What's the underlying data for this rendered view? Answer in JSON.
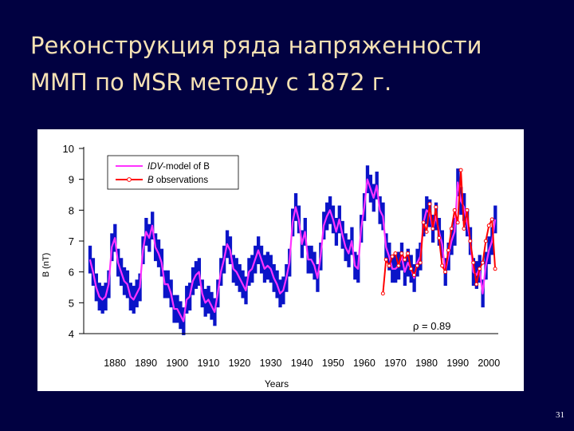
{
  "slide": {
    "title_line1": "Реконструкция ряда напряженности",
    "title_line2": "ММП по MSR методу с 1872 г.",
    "page_number": "31",
    "colors": {
      "background": "#010141",
      "title": "#f6e2b4",
      "panel": "#ffffff"
    }
  },
  "chart_data": {
    "type": "line",
    "title": "",
    "xlabel": "Years",
    "ylabel": "B (nT)",
    "xlim": [
      1870,
      2003
    ],
    "ylim": [
      4,
      10
    ],
    "x_ticks": [
      1880,
      1890,
      1900,
      1910,
      1920,
      1930,
      1940,
      1950,
      1960,
      1970,
      1980,
      1990,
      2000
    ],
    "y_ticks": [
      4,
      5,
      6,
      7,
      8,
      9,
      10
    ],
    "grid": false,
    "legend": {
      "placement": "top-left",
      "entries": [
        {
          "prefix": "IDV",
          "suffix": "-model of B",
          "color": "#ff33ff",
          "marker": "none"
        },
        {
          "prefix": "B",
          "suffix": " observations",
          "color": "#ff0000",
          "marker": "circle"
        }
      ]
    },
    "annotation": "ρ = 0.89",
    "colors": {
      "band": "#0a14c8",
      "model": "#ff33ff",
      "observations": "#ff0000",
      "marker_fill": "#ffffff"
    },
    "series": [
      {
        "name": "IDV-model of B",
        "x": [
          1872,
          1873,
          1874,
          1875,
          1876,
          1877,
          1878,
          1879,
          1880,
          1881,
          1882,
          1883,
          1884,
          1885,
          1886,
          1887,
          1888,
          1889,
          1890,
          1891,
          1892,
          1893,
          1894,
          1895,
          1896,
          1897,
          1898,
          1899,
          1900,
          1901,
          1902,
          1903,
          1904,
          1905,
          1906,
          1907,
          1908,
          1909,
          1910,
          1911,
          1912,
          1913,
          1914,
          1915,
          1916,
          1917,
          1918,
          1919,
          1920,
          1921,
          1922,
          1923,
          1924,
          1925,
          1926,
          1927,
          1928,
          1929,
          1930,
          1931,
          1932,
          1933,
          1934,
          1935,
          1936,
          1937,
          1938,
          1939,
          1940,
          1941,
          1942,
          1943,
          1944,
          1945,
          1946,
          1947,
          1948,
          1949,
          1950,
          1951,
          1952,
          1953,
          1954,
          1955,
          1956,
          1957,
          1958,
          1959,
          1960,
          1961,
          1962,
          1963,
          1964,
          1965,
          1966,
          1967,
          1968,
          1969,
          1970,
          1971,
          1972,
          1973,
          1974,
          1975,
          1976,
          1977,
          1978,
          1979,
          1980,
          1981,
          1982,
          1983,
          1984,
          1985,
          1986,
          1987,
          1988,
          1989,
          1990,
          1991,
          1992,
          1993,
          1994,
          1995,
          1996,
          1997,
          1998,
          1999,
          2000,
          2001,
          2002
        ],
        "values": [
          6.4,
          6.0,
          5.5,
          5.2,
          5.1,
          5.2,
          5.6,
          6.8,
          7.1,
          6.3,
          6.0,
          5.7,
          5.6,
          5.2,
          5.1,
          5.3,
          5.5,
          6.7,
          7.3,
          7.1,
          7.5,
          6.8,
          6.6,
          6.3,
          5.6,
          5.6,
          5.3,
          4.8,
          4.8,
          4.6,
          4.4,
          5.1,
          5.2,
          5.7,
          5.9,
          6.0,
          5.3,
          5.0,
          5.1,
          4.9,
          4.7,
          5.3,
          6.0,
          6.4,
          6.9,
          6.7,
          6.1,
          6.0,
          5.8,
          5.6,
          5.4,
          6.0,
          6.1,
          6.4,
          6.7,
          6.4,
          6.1,
          6.2,
          6.1,
          5.8,
          5.6,
          5.3,
          5.4,
          5.8,
          6.3,
          7.6,
          8.1,
          7.7,
          6.9,
          7.3,
          6.4,
          6.4,
          6.2,
          5.8,
          6.5,
          7.5,
          7.8,
          8.0,
          7.7,
          7.3,
          7.7,
          7.2,
          6.8,
          6.6,
          7.0,
          6.2,
          6.1,
          7.4,
          8.1,
          9.0,
          8.7,
          8.4,
          8.8,
          8.0,
          7.8,
          6.8,
          6.5,
          6.1,
          6.1,
          6.2,
          6.5,
          6.0,
          6.3,
          6.1,
          5.8,
          6.3,
          6.5,
          7.6,
          8.0,
          7.9,
          7.4,
          7.8,
          7.3,
          6.9,
          6.0,
          6.5,
          7.0,
          7.3,
          8.9,
          8.3,
          8.1,
          7.6,
          7.0,
          6.0,
          5.9,
          6.1,
          5.3,
          6.2,
          6.7,
          7.0,
          7.7
        ]
      },
      {
        "name": "B observations",
        "x": [
          1966,
          1967,
          1968,
          1969,
          1970,
          1971,
          1972,
          1973,
          1974,
          1975,
          1976,
          1977,
          1978,
          1979,
          1980,
          1981,
          1982,
          1983,
          1984,
          1985,
          1986,
          1987,
          1988,
          1989,
          1990,
          1991,
          1992,
          1993,
          1994,
          1995,
          1996,
          1997,
          1998,
          1999,
          2000,
          2001,
          2002
        ],
        "values": [
          5.3,
          6.4,
          6.2,
          6.5,
          6.6,
          6.2,
          6.6,
          6.4,
          6.6,
          6.1,
          5.9,
          6.2,
          6.3,
          7.6,
          7.3,
          8.2,
          7.4,
          8.1,
          7.1,
          6.2,
          6.0,
          6.7,
          7.4,
          8.0,
          7.6,
          9.3,
          7.4,
          8.0,
          7.0,
          6.3,
          5.6,
          6.1,
          6.3,
          7.0,
          7.5,
          7.7,
          6.1
        ]
      }
    ],
    "band_amplitude": 0.45
  }
}
